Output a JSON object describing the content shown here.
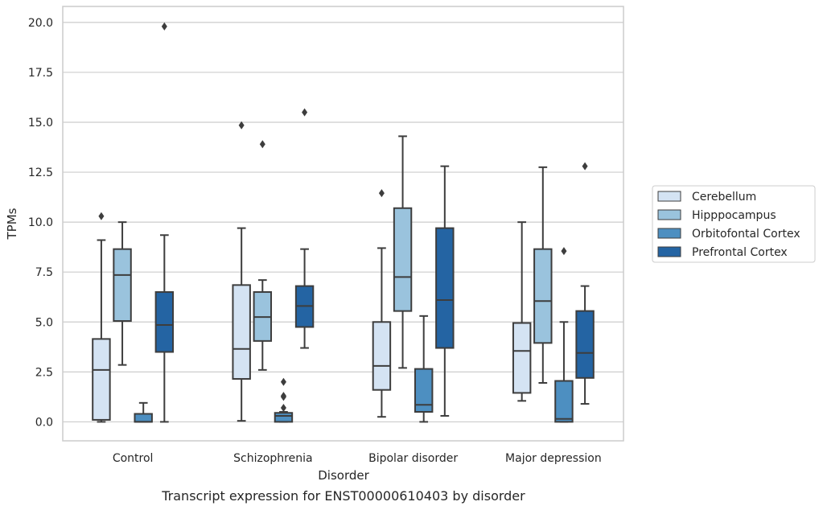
{
  "caption": "Transcript expression for ENST00000610403 by disorder",
  "chart_data": {
    "type": "box",
    "xlabel": "Disorder",
    "ylabel": "TPMs",
    "ylim": [
      -0.95,
      20.8
    ],
    "yticks": [
      0.0,
      2.5,
      5.0,
      7.5,
      10.0,
      12.5,
      15.0,
      17.5,
      20.0
    ],
    "ytick_labels": [
      "0.0",
      "2.5",
      "5.0",
      "7.5",
      "10.0",
      "12.5",
      "15.0",
      "17.5",
      "20.0"
    ],
    "grid": "horizontal",
    "legend_position": "right",
    "categories": [
      "Control",
      "Schizophrenia",
      "Bipolar disorder",
      "Major depression"
    ],
    "series": [
      {
        "name": "Cerebellum",
        "color": "#d4e3f3",
        "boxes": [
          {
            "whislo": 0.0,
            "q1": 0.1,
            "med": 2.6,
            "q3": 4.15,
            "whishi": 9.1,
            "fliers": [
              10.3
            ]
          },
          {
            "whislo": 0.05,
            "q1": 2.15,
            "med": 3.65,
            "q3": 6.85,
            "whishi": 9.7,
            "fliers": [
              14.85
            ]
          },
          {
            "whislo": 0.25,
            "q1": 1.6,
            "med": 2.8,
            "q3": 5.0,
            "whishi": 8.7,
            "fliers": [
              11.45
            ]
          },
          {
            "whislo": 1.05,
            "q1": 1.45,
            "med": 3.55,
            "q3": 4.95,
            "whishi": 10.0,
            "fliers": []
          }
        ]
      },
      {
        "name": "Hipppocampus",
        "color": "#9ac3dd",
        "boxes": [
          {
            "whislo": 2.85,
            "q1": 5.05,
            "med": 7.35,
            "q3": 8.65,
            "whishi": 10.0,
            "fliers": []
          },
          {
            "whislo": 2.6,
            "q1": 4.05,
            "med": 5.25,
            "q3": 6.5,
            "whishi": 7.1,
            "fliers": [
              13.9
            ]
          },
          {
            "whislo": 2.7,
            "q1": 5.55,
            "med": 7.25,
            "q3": 10.7,
            "whishi": 14.3,
            "fliers": []
          },
          {
            "whislo": 1.95,
            "q1": 3.95,
            "med": 6.05,
            "q3": 8.65,
            "whishi": 12.75,
            "fliers": []
          }
        ]
      },
      {
        "name": "Orbitofontal Cortex",
        "color": "#4d8fc1",
        "boxes": [
          {
            "whislo": 0.0,
            "q1": 0.0,
            "med": 0.0,
            "q3": 0.4,
            "whishi": 0.95,
            "fliers": []
          },
          {
            "whislo": 0.0,
            "q1": 0.0,
            "med": 0.3,
            "q3": 0.45,
            "whishi": 0.5,
            "fliers": [
              2.0,
              1.3,
              1.25,
              0.7
            ]
          },
          {
            "whislo": 0.0,
            "q1": 0.5,
            "med": 0.85,
            "q3": 2.65,
            "whishi": 5.3,
            "fliers": []
          },
          {
            "whislo": 0.0,
            "q1": 0.0,
            "med": 0.15,
            "q3": 2.05,
            "whishi": 5.0,
            "fliers": [
              8.55
            ]
          }
        ]
      },
      {
        "name": "Prefrontal Cortex",
        "color": "#2464a3",
        "boxes": [
          {
            "whislo": 0.0,
            "q1": 3.5,
            "med": 4.85,
            "q3": 6.5,
            "whishi": 9.35,
            "fliers": [
              19.8
            ]
          },
          {
            "whislo": 3.7,
            "q1": 4.75,
            "med": 5.8,
            "q3": 6.8,
            "whishi": 8.65,
            "fliers": [
              15.5
            ]
          },
          {
            "whislo": 0.3,
            "q1": 3.7,
            "med": 6.1,
            "q3": 9.7,
            "whishi": 12.8,
            "fliers": []
          },
          {
            "whislo": 0.9,
            "q1": 2.2,
            "med": 3.45,
            "q3": 5.55,
            "whishi": 6.8,
            "fliers": [
              12.8
            ]
          }
        ]
      }
    ]
  }
}
